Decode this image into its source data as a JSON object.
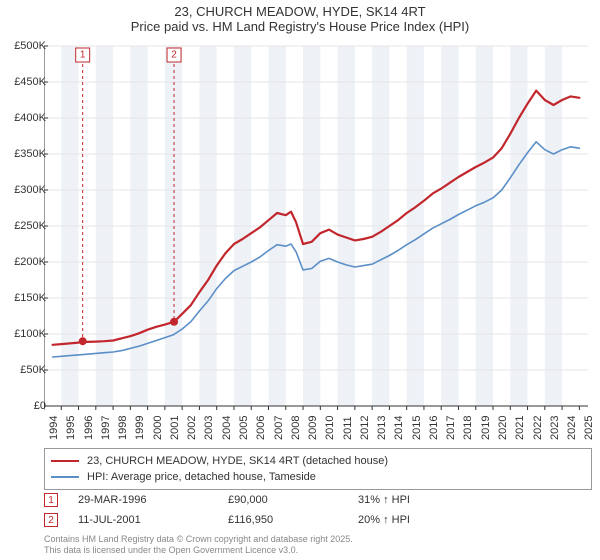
{
  "title": {
    "line1": "23, CHURCH MEADOW, HYDE, SK14 4RT",
    "line2": "Price paid vs. HM Land Registry's House Price Index (HPI)",
    "fontsize": 13
  },
  "chart": {
    "type": "line",
    "background_color": "#ffffff",
    "alt_band_color": "#eef2f7",
    "grid_color": "#e4e4e4",
    "x_years": [
      1994,
      1995,
      1996,
      1997,
      1998,
      1999,
      2000,
      2001,
      2002,
      2003,
      2004,
      2005,
      2006,
      2007,
      2008,
      2009,
      2010,
      2011,
      2012,
      2013,
      2014,
      2015,
      2016,
      2017,
      2018,
      2019,
      2020,
      2021,
      2022,
      2023,
      2024,
      2025
    ],
    "xlim": [
      1994,
      2025.5
    ],
    "ylim": [
      0,
      500000
    ],
    "ytick_step": 50000,
    "ytick_labels": [
      "£0",
      "£50K",
      "£100K",
      "£150K",
      "£200K",
      "£250K",
      "£300K",
      "£350K",
      "£400K",
      "£450K",
      "£500K"
    ],
    "label_fontsize": 11,
    "series": [
      {
        "name": "23, CHURCH MEADOW, HYDE, SK14 4RT (detached house)",
        "color": "#c1272d",
        "line_width": 2.2,
        "data": [
          [
            1994.5,
            85000
          ],
          [
            1995,
            86000
          ],
          [
            1995.5,
            87000
          ],
          [
            1996,
            88000
          ],
          [
            1996.24,
            90000
          ],
          [
            1996.5,
            89000
          ],
          [
            1997,
            89500
          ],
          [
            1997.5,
            90000
          ],
          [
            1998,
            91000
          ],
          [
            1998.5,
            94000
          ],
          [
            1999,
            97000
          ],
          [
            1999.5,
            101000
          ],
          [
            2000,
            106000
          ],
          [
            2000.5,
            110000
          ],
          [
            2001,
            113000
          ],
          [
            2001.53,
            116950
          ],
          [
            2002,
            128000
          ],
          [
            2002.5,
            140000
          ],
          [
            2003,
            158000
          ],
          [
            2003.5,
            175000
          ],
          [
            2004,
            195000
          ],
          [
            2004.5,
            212000
          ],
          [
            2005,
            225000
          ],
          [
            2005.5,
            232000
          ],
          [
            2006,
            240000
          ],
          [
            2006.5,
            248000
          ],
          [
            2007,
            258000
          ],
          [
            2007.5,
            268000
          ],
          [
            2008,
            265000
          ],
          [
            2008.3,
            270000
          ],
          [
            2008.6,
            255000
          ],
          [
            2009,
            225000
          ],
          [
            2009.5,
            228000
          ],
          [
            2010,
            240000
          ],
          [
            2010.5,
            245000
          ],
          [
            2011,
            238000
          ],
          [
            2011.5,
            234000
          ],
          [
            2012,
            230000
          ],
          [
            2012.5,
            232000
          ],
          [
            2013,
            235000
          ],
          [
            2013.5,
            242000
          ],
          [
            2014,
            250000
          ],
          [
            2014.5,
            258000
          ],
          [
            2015,
            268000
          ],
          [
            2015.5,
            276000
          ],
          [
            2016,
            285000
          ],
          [
            2016.5,
            295000
          ],
          [
            2017,
            302000
          ],
          [
            2017.5,
            310000
          ],
          [
            2018,
            318000
          ],
          [
            2018.5,
            325000
          ],
          [
            2019,
            332000
          ],
          [
            2019.5,
            338000
          ],
          [
            2020,
            345000
          ],
          [
            2020.5,
            358000
          ],
          [
            2021,
            378000
          ],
          [
            2021.5,
            400000
          ],
          [
            2022,
            420000
          ],
          [
            2022.5,
            438000
          ],
          [
            2023,
            425000
          ],
          [
            2023.5,
            418000
          ],
          [
            2024,
            425000
          ],
          [
            2024.5,
            430000
          ],
          [
            2025,
            428000
          ]
        ]
      },
      {
        "name": "HPI: Average price, detached house, Tameside",
        "color": "#5b8fc7",
        "line_width": 1.6,
        "data": [
          [
            1994.5,
            68000
          ],
          [
            1995,
            69000
          ],
          [
            1995.5,
            70000
          ],
          [
            1996,
            71000
          ],
          [
            1996.5,
            72000
          ],
          [
            1997,
            73000
          ],
          [
            1997.5,
            74000
          ],
          [
            1998,
            75000
          ],
          [
            1998.5,
            77000
          ],
          [
            1999,
            80000
          ],
          [
            1999.5,
            83000
          ],
          [
            2000,
            87000
          ],
          [
            2000.5,
            91000
          ],
          [
            2001,
            95000
          ],
          [
            2001.5,
            99000
          ],
          [
            2002,
            107000
          ],
          [
            2002.5,
            117000
          ],
          [
            2003,
            132000
          ],
          [
            2003.5,
            146000
          ],
          [
            2004,
            163000
          ],
          [
            2004.5,
            177000
          ],
          [
            2005,
            188000
          ],
          [
            2005.5,
            194000
          ],
          [
            2006,
            200000
          ],
          [
            2006.5,
            207000
          ],
          [
            2007,
            216000
          ],
          [
            2007.5,
            224000
          ],
          [
            2008,
            222000
          ],
          [
            2008.3,
            225000
          ],
          [
            2008.6,
            214000
          ],
          [
            2009,
            189000
          ],
          [
            2009.5,
            191000
          ],
          [
            2010,
            201000
          ],
          [
            2010.5,
            205000
          ],
          [
            2011,
            200000
          ],
          [
            2011.5,
            196000
          ],
          [
            2012,
            193000
          ],
          [
            2012.5,
            195000
          ],
          [
            2013,
            197000
          ],
          [
            2013.5,
            203000
          ],
          [
            2014,
            209000
          ],
          [
            2014.5,
            216000
          ],
          [
            2015,
            224000
          ],
          [
            2015.5,
            231000
          ],
          [
            2016,
            239000
          ],
          [
            2016.5,
            247000
          ],
          [
            2017,
            253000
          ],
          [
            2017.5,
            259000
          ],
          [
            2018,
            266000
          ],
          [
            2018.5,
            272000
          ],
          [
            2019,
            278000
          ],
          [
            2019.5,
            283000
          ],
          [
            2020,
            289000
          ],
          [
            2020.5,
            300000
          ],
          [
            2021,
            317000
          ],
          [
            2021.5,
            335000
          ],
          [
            2022,
            352000
          ],
          [
            2022.5,
            367000
          ],
          [
            2023,
            356000
          ],
          [
            2023.5,
            350000
          ],
          [
            2024,
            356000
          ],
          [
            2024.5,
            360000
          ],
          [
            2025,
            358000
          ]
        ]
      }
    ],
    "event_markers": [
      {
        "label": "1",
        "x": 1996.24,
        "y": 90000,
        "color": "#c1272d"
      },
      {
        "label": "2",
        "x": 2001.53,
        "y": 116950,
        "color": "#c1272d"
      }
    ]
  },
  "legend": {
    "border_color": "#999999",
    "items": [
      {
        "color": "#c1272d",
        "label": "23, CHURCH MEADOW, HYDE, SK14 4RT (detached house)"
      },
      {
        "color": "#5b8fc7",
        "label": "HPI: Average price, detached house, Tameside"
      }
    ]
  },
  "price_table": {
    "rows": [
      {
        "marker": "1",
        "marker_color": "#c1272d",
        "date": "29-MAR-1996",
        "price": "£90,000",
        "pct": "31% ↑ HPI"
      },
      {
        "marker": "2",
        "marker_color": "#c1272d",
        "date": "11-JUL-2001",
        "price": "£116,950",
        "pct": "20% ↑ HPI"
      }
    ]
  },
  "footer": {
    "line1": "Contains HM Land Registry data © Crown copyright and database right 2025.",
    "line2": "This data is licensed under the Open Government Licence v3.0.",
    "color": "#888888",
    "fontsize": 9
  }
}
